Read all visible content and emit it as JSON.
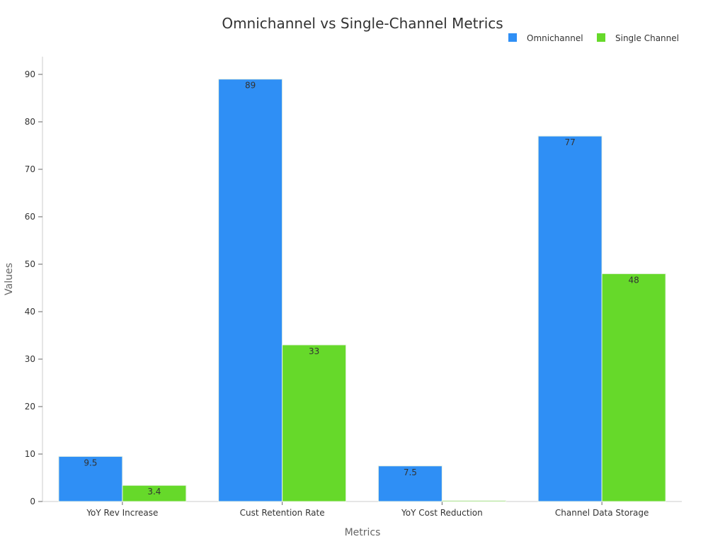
{
  "chart_data": {
    "type": "bar",
    "title": "Omnichannel vs Single-Channel Metrics",
    "xlabel": "Metrics",
    "ylabel": "Values",
    "ylim": [
      0,
      90
    ],
    "yticks": [
      0,
      10,
      20,
      30,
      40,
      50,
      60,
      70,
      80,
      90
    ],
    "categories": [
      "YoY Rev Increase",
      "Cust Retention Rate",
      "YoY Cost Reduction",
      "Channel Data Storage"
    ],
    "legend_position": "top-right",
    "series": [
      {
        "name": "Omnichannel",
        "color": "#2f8ff5",
        "values": [
          9.5,
          89,
          7.5,
          77
        ]
      },
      {
        "name": "Single Channel",
        "color": "#66d92a",
        "values": [
          3.4,
          33,
          0.2,
          48
        ]
      }
    ],
    "data_labels": [
      [
        "9.5",
        "89",
        "7.5",
        "77"
      ],
      [
        "3.4",
        "33",
        "",
        "48"
      ]
    ]
  }
}
